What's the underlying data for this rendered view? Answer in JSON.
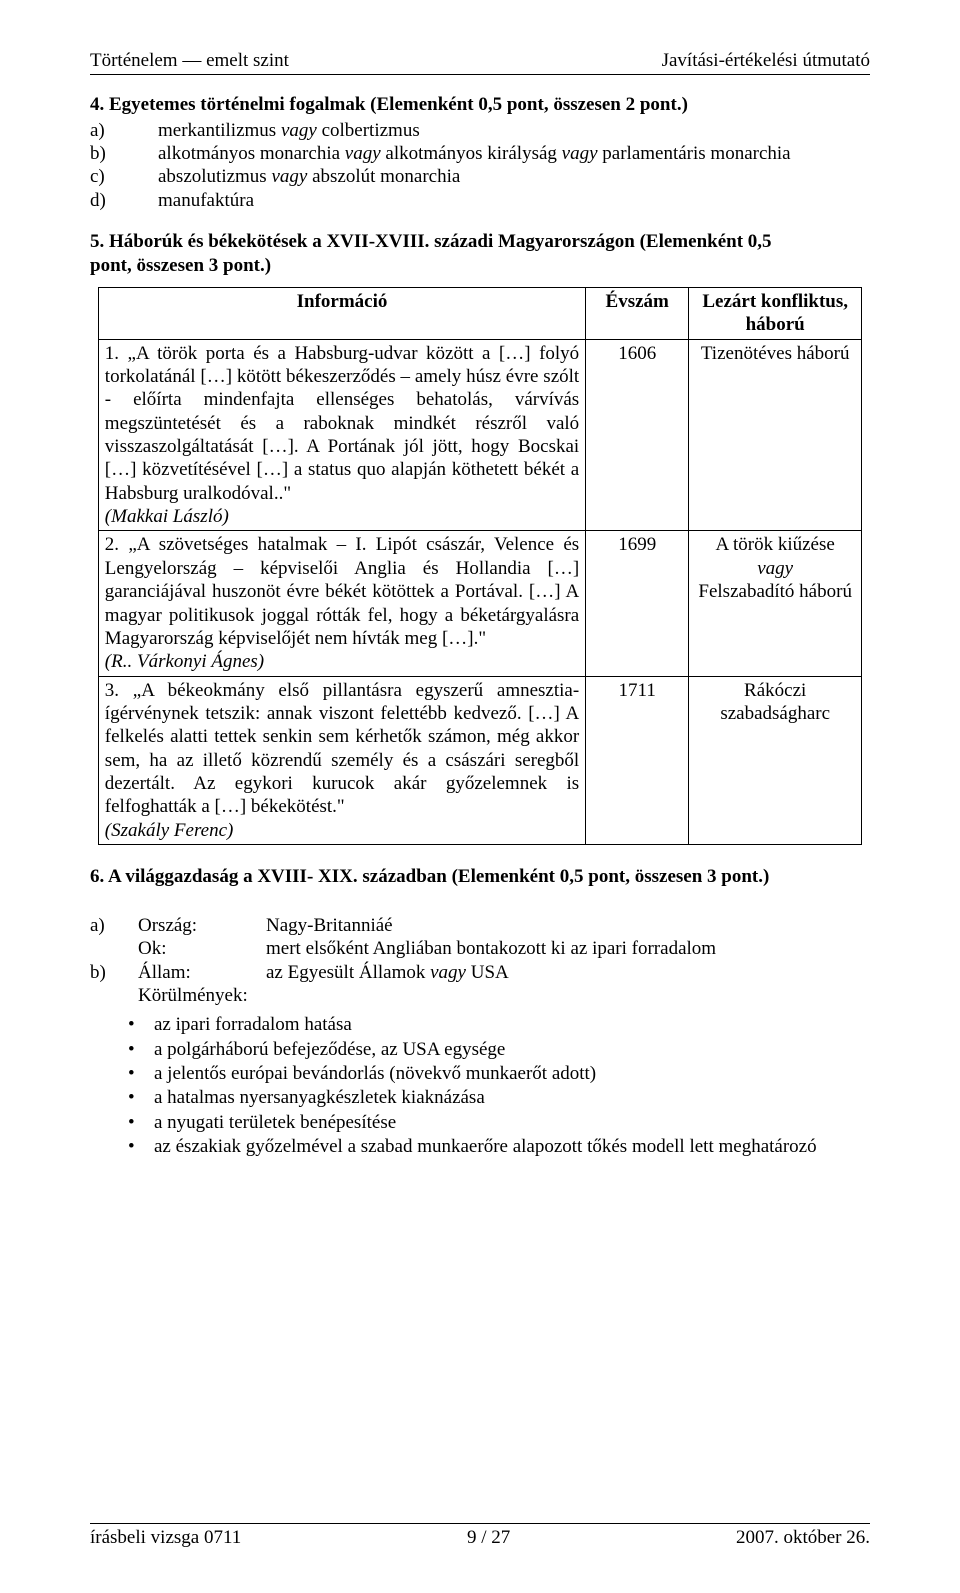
{
  "header": {
    "left": "Történelem — emelt szint",
    "right": "Javítási-értékelési útmutató"
  },
  "q4": {
    "heading": "4. Egyetemes történelmi fogalmak (Elemenként 0,5 pont, összesen 2 pont.)",
    "items": [
      {
        "label": "a)",
        "value_pre": "merkantilizmus ",
        "value_it": "vagy",
        "value_post": " colbertizmus"
      },
      {
        "label": "b)",
        "value_pre": "alkotmányos monarchia ",
        "value_it": "vagy",
        "value_mid": " alkotmányos királyság ",
        "value_it2": "vagy",
        "value_post": " parlamentáris monarchia"
      },
      {
        "label": "c)",
        "value_pre": "abszolutizmus ",
        "value_it": "vagy",
        "value_post": " abszolút monarchia"
      },
      {
        "label": "d)",
        "value_pre": "manufaktúra",
        "value_it": "",
        "value_post": ""
      }
    ]
  },
  "q5": {
    "heading_line1": "5. Háborúk és békekötések a XVII-XVIII. századi Magyarországon (Elemenként 0,5",
    "heading_line2": "pont, összesen 3 pont.)",
    "th1": "Információ",
    "th2": "Évszám",
    "th3": "Lezárt konfliktus, háború",
    "rows": [
      {
        "text": "1. „A török porta és a Habsburg-udvar között a […] folyó torkolatánál […] kötött békeszerződés – amely húsz évre szólt - előírta mindenfajta ellenséges behatolás, várvívás megszüntetését és a raboknak mindkét részről való visszaszolgáltatását […]. A Portának jól jött, hogy Bocskai […] közvetítésével […] a status quo alapján köthetett békét a Habsburg uralkodóval..\"",
        "cite": "(Makkai László)",
        "year": "1606",
        "result": "Tizenötéves háború"
      },
      {
        "text": "2. „A szövetséges hatalmak – I. Lipót császár, Velence és Lengyelország – képviselői Anglia és Hollandia […] garanciájával huszonöt évre békét kötöttek a Portával. […] A magyar politikusok joggal rótták fel, hogy a béketárgyalásra Magyarország képviselőjét nem hívták meg […].\"",
        "cite": "(R.. Várkonyi Ágnes)",
        "year": "1699",
        "result_lines": [
          "A török kiűzése",
          "vagy",
          "Felszabadító háború"
        ],
        "result_italic_index": 1
      },
      {
        "text": "3. „A békeokmány első pillantásra egyszerű amnesztia-ígérvénynek tetszik: annak viszont felettébb kedvező. […] A felkelés alatti tettek senkin sem kérhetők számon, még akkor sem, ha az illető közrendű személy és a császári seregből dezertált. Az egykori kurucok akár győzelemnek is felfoghatták a […] békekötést.\"",
        "cite": "(Szakály Ferenc)",
        "year": "1711",
        "result": "Rákóczi szabadságharc"
      }
    ]
  },
  "q6": {
    "heading": "6. A világgazdaság a XVIII- XIX. században (",
    "heading_tail": "(Elemenként 0,5 pont, összesen 3 pont.)",
    "a": {
      "label": "a)",
      "orszag_l": "Ország:",
      "orszag_v": "Nagy-Britanniáé",
      "ok_l": "Ok:",
      "ok_v": "mert elsőként Angliában bontakozott ki az ipari forradalom"
    },
    "b": {
      "label": "b)",
      "allam_l": "Állam:",
      "allam_v_pre": "az Egyesült Államok ",
      "allam_v_it": "vagy",
      "allam_v_post": " USA",
      "korul_l": "Körülmények:"
    },
    "bullets": [
      "az ipari forradalom hatása",
      "a polgárháború befejeződése, az USA egysége",
      "a jelentős európai bevándorlás (növekvő munkaerőt adott)",
      "a hatalmas nyersanyagkészletek kiaknázása",
      "a nyugati területek benépesítése",
      "az északiak győzelmével a szabad munkaerőre alapozott tőkés modell lett meghatározó"
    ]
  },
  "footer": {
    "left": "írásbeli vizsga 0711",
    "center": "9 / 27",
    "right": "2007. október 26."
  }
}
